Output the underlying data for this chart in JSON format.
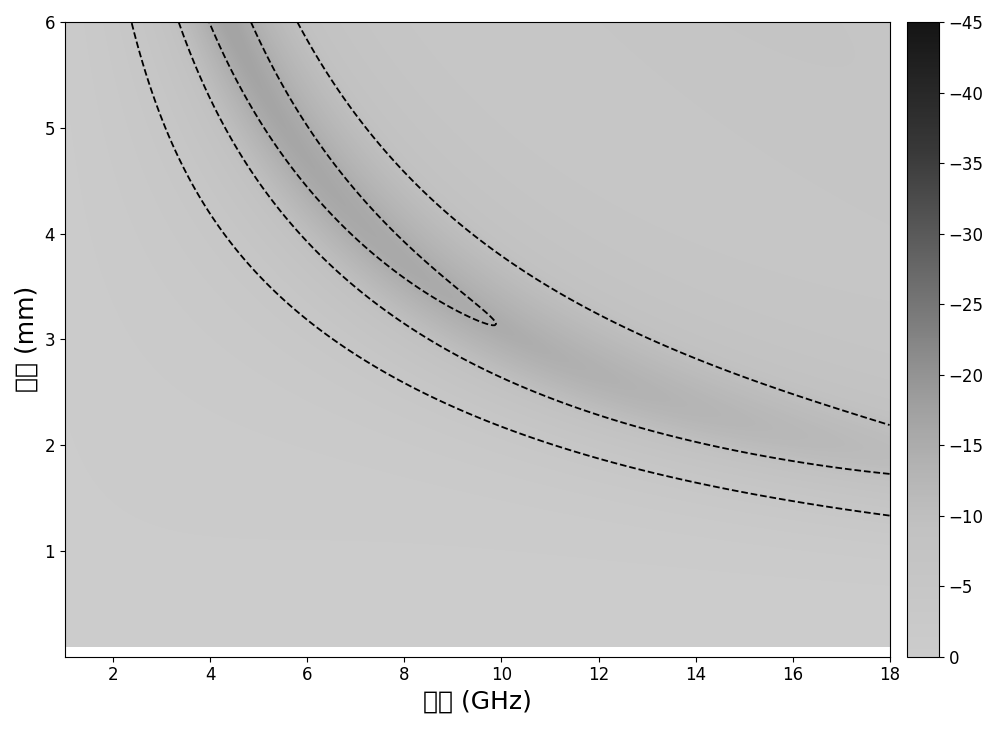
{
  "freq_min": 1,
  "freq_max": 18,
  "freq_points": 400,
  "thick_min": 0.1,
  "thick_max": 6.0,
  "thick_points": 400,
  "colorbar_ticks": [
    -45,
    -40,
    -35,
    -30,
    -25,
    -20,
    -15,
    -10,
    -5,
    0
  ],
  "contour_line_levels": [
    -45,
    -40,
    -35,
    -30,
    -25,
    -20,
    -15,
    -10,
    -5
  ],
  "xlabel": "频率 (GHz)",
  "ylabel": "厚度 (mm)",
  "xticks": [
    2,
    4,
    6,
    8,
    10,
    12,
    14,
    16,
    18
  ],
  "yticks": [
    1,
    2,
    3,
    4,
    5,
    6
  ],
  "vmin": -45,
  "vmax": 0,
  "figsize": [
    10.0,
    7.29
  ],
  "dpi": 100,
  "er_real_0": 7.5,
  "er_real_slope": -0.18,
  "er_imag_0": 3.2,
  "er_imag_slope": 0.08,
  "ur_real_0": 1.0,
  "ur_real_amp": 1.2,
  "ur_real_decay": 0.4,
  "ur_imag_amp": 0.8,
  "ur_imag_decay": 0.25
}
